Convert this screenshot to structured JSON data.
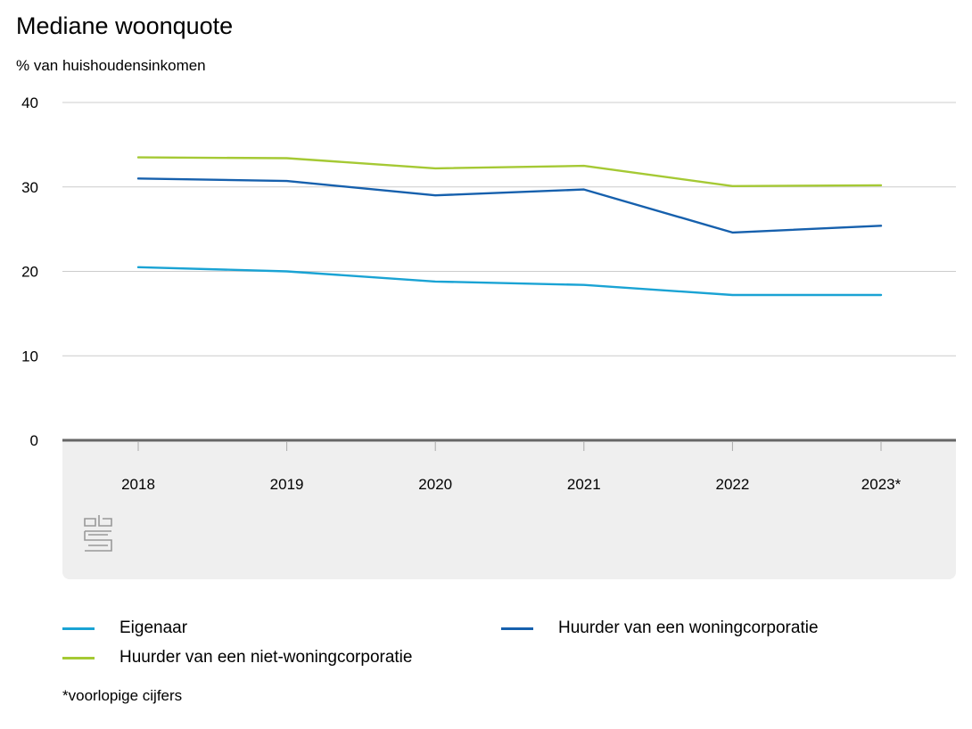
{
  "title": "Mediane woonquote",
  "subtitle": "% van huishoudensinkomen",
  "footnote": "*voorlopige cijfers",
  "chart_data": {
    "type": "line",
    "x": [
      "2018",
      "2019",
      "2020",
      "2021",
      "2022",
      "2023*"
    ],
    "ylim": [
      0,
      40
    ],
    "yticks": [
      0,
      10,
      20,
      30,
      40
    ],
    "grid": true,
    "legend_placement": "bottom",
    "series": [
      {
        "name": "Eigenaar",
        "color": "#1aa3d4",
        "values": [
          20.5,
          20.0,
          18.8,
          18.4,
          17.2,
          17.2
        ]
      },
      {
        "name": "Huurder van een woningcorporatie",
        "color": "#1660ad",
        "values": [
          31.0,
          30.7,
          29.0,
          29.7,
          24.6,
          25.4
        ]
      },
      {
        "name": "Huurder van een niet-woningcorporatie",
        "color": "#a5c934",
        "values": [
          33.5,
          33.4,
          32.2,
          32.5,
          30.1,
          30.2
        ]
      }
    ]
  },
  "colors": {
    "axis": "#666666",
    "gridline": "#cccccc",
    "x_axis_panel": "#efefef",
    "logo": "#999999"
  },
  "logo_icon": "cbs-logo-icon"
}
